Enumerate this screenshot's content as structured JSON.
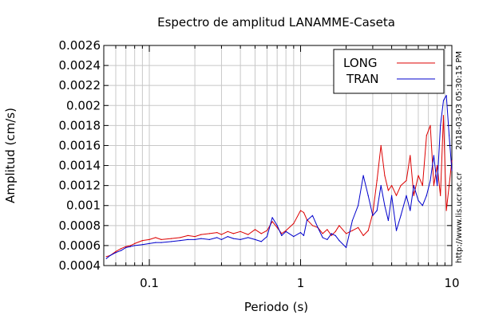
{
  "chart_data": {
    "type": "line",
    "title": "Espectro de amplitud LANAMME-Caseta",
    "xlabel": "Periodo (s)",
    "ylabel": "Amplitud (cm/s)",
    "x_scale": "log",
    "xlim": [
      0.05,
      10
    ],
    "ylim": [
      0.0004,
      0.0026
    ],
    "x_ticks": [
      {
        "value": 0.1,
        "label": "0.1"
      },
      {
        "value": 1,
        "label": "1"
      },
      {
        "value": 10,
        "label": "10"
      }
    ],
    "y_ticks": [
      {
        "value": 0.0004,
        "label": "0.0004"
      },
      {
        "value": 0.0006,
        "label": "0.0006"
      },
      {
        "value": 0.0008,
        "label": "0.0008"
      },
      {
        "value": 0.001,
        "label": "0.001"
      },
      {
        "value": 0.0012,
        "label": "0.0012"
      },
      {
        "value": 0.0014,
        "label": "0.0014"
      },
      {
        "value": 0.0016,
        "label": "0.0016"
      },
      {
        "value": 0.0018,
        "label": "0.0018"
      },
      {
        "value": 0.002,
        "label": "0.002"
      },
      {
        "value": 0.0022,
        "label": "0.0022"
      },
      {
        "value": 0.0024,
        "label": "0.0024"
      },
      {
        "value": 0.0026,
        "label": "0.0026"
      }
    ],
    "grid": true,
    "legend_position": "top-right",
    "side_text": [
      "http://www.lis.ucr.ac.cr",
      "2018-03-03 05:30:15 PM"
    ],
    "series": [
      {
        "name": "LONG",
        "color": "#dd0000",
        "x": [
          0.052,
          0.055,
          0.06,
          0.065,
          0.07,
          0.075,
          0.08,
          0.09,
          0.1,
          0.11,
          0.12,
          0.14,
          0.16,
          0.18,
          0.2,
          0.22,
          0.25,
          0.28,
          0.3,
          0.33,
          0.36,
          0.4,
          0.45,
          0.5,
          0.55,
          0.6,
          0.65,
          0.7,
          0.75,
          0.8,
          0.9,
          1.0,
          1.05,
          1.1,
          1.2,
          1.3,
          1.4,
          1.5,
          1.6,
          1.7,
          1.8,
          2.0,
          2.2,
          2.4,
          2.6,
          2.8,
          3.0,
          3.2,
          3.4,
          3.6,
          3.8,
          4.0,
          4.3,
          4.6,
          5.0,
          5.3,
          5.6,
          6.0,
          6.4,
          6.8,
          7.2,
          7.6,
          8.0,
          8.4,
          8.8,
          9.2,
          9.6,
          10.0
        ],
        "values": [
          0.00049,
          0.0005,
          0.00054,
          0.00057,
          0.00059,
          0.0006,
          0.00062,
          0.00065,
          0.00066,
          0.00068,
          0.00066,
          0.00067,
          0.00068,
          0.0007,
          0.00069,
          0.00071,
          0.00072,
          0.00073,
          0.00071,
          0.00074,
          0.00072,
          0.00074,
          0.00071,
          0.00076,
          0.00072,
          0.00075,
          0.00084,
          0.00078,
          0.00072,
          0.00075,
          0.00082,
          0.00095,
          0.00093,
          0.00086,
          0.0008,
          0.00078,
          0.00072,
          0.00076,
          0.0007,
          0.00074,
          0.0008,
          0.00072,
          0.00075,
          0.00078,
          0.0007,
          0.00075,
          0.00092,
          0.00125,
          0.0016,
          0.0013,
          0.00115,
          0.0012,
          0.0011,
          0.0012,
          0.00125,
          0.0015,
          0.0011,
          0.0013,
          0.0012,
          0.0017,
          0.0018,
          0.0012,
          0.0014,
          0.0011,
          0.0019,
          0.00095,
          0.0012,
          0.00145
        ]
      },
      {
        "name": "TRAN",
        "color": "#0000cc",
        "x": [
          0.052,
          0.055,
          0.06,
          0.065,
          0.07,
          0.075,
          0.08,
          0.09,
          0.1,
          0.11,
          0.12,
          0.14,
          0.16,
          0.18,
          0.2,
          0.22,
          0.25,
          0.28,
          0.3,
          0.33,
          0.36,
          0.4,
          0.45,
          0.5,
          0.55,
          0.6,
          0.65,
          0.7,
          0.75,
          0.8,
          0.9,
          1.0,
          1.05,
          1.1,
          1.2,
          1.3,
          1.4,
          1.5,
          1.6,
          1.7,
          1.8,
          2.0,
          2.2,
          2.4,
          2.6,
          2.8,
          3.0,
          3.2,
          3.4,
          3.6,
          3.8,
          4.0,
          4.3,
          4.6,
          5.0,
          5.3,
          5.6,
          6.0,
          6.4,
          6.8,
          7.2,
          7.6,
          8.0,
          8.4,
          8.8,
          9.2,
          9.6,
          10.0
        ],
        "values": [
          0.00047,
          0.0005,
          0.00053,
          0.00055,
          0.00058,
          0.00059,
          0.0006,
          0.00061,
          0.00062,
          0.00063,
          0.00063,
          0.00064,
          0.00065,
          0.00066,
          0.00066,
          0.00067,
          0.00066,
          0.00068,
          0.00066,
          0.00069,
          0.00067,
          0.00066,
          0.00068,
          0.00066,
          0.00064,
          0.00069,
          0.00088,
          0.0008,
          0.0007,
          0.00074,
          0.00069,
          0.00073,
          0.0007,
          0.00085,
          0.0009,
          0.00078,
          0.00068,
          0.00066,
          0.00072,
          0.0007,
          0.00065,
          0.00058,
          0.00085,
          0.001,
          0.0013,
          0.0011,
          0.0009,
          0.00095,
          0.0012,
          0.001,
          0.00085,
          0.0011,
          0.00075,
          0.0009,
          0.0011,
          0.00095,
          0.0012,
          0.00105,
          0.001,
          0.0011,
          0.00125,
          0.0015,
          0.0012,
          0.0018,
          0.00205,
          0.0021,
          0.0017,
          0.00135
        ]
      }
    ]
  }
}
